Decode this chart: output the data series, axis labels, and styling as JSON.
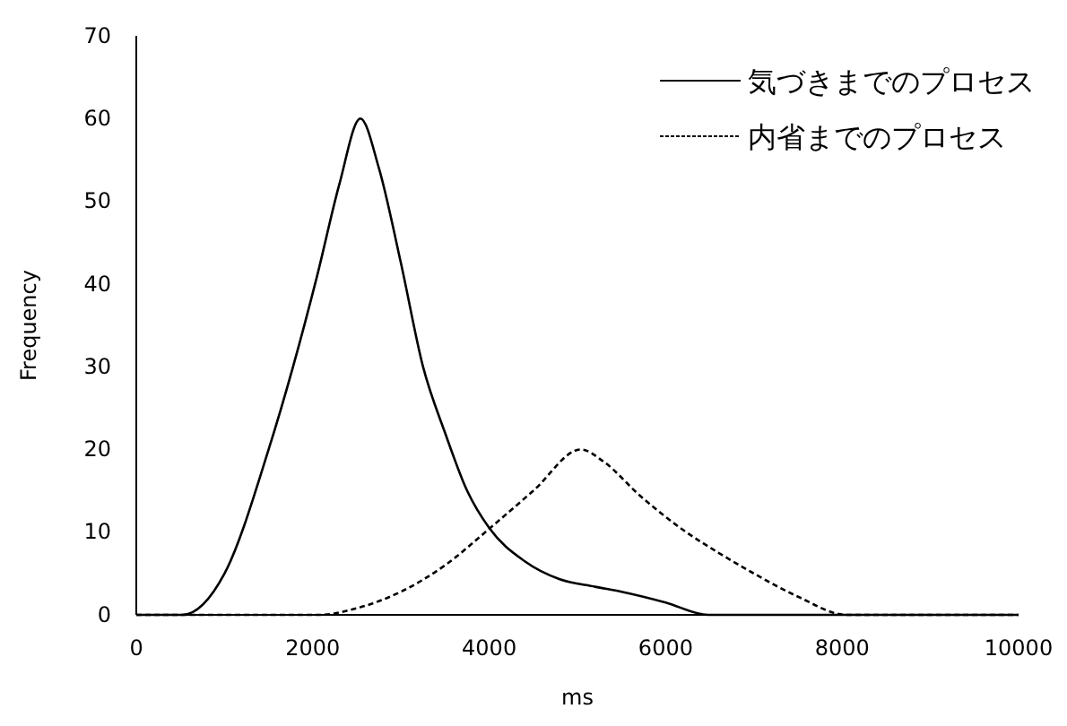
{
  "chart_data": {
    "type": "line",
    "xlabel": "ms",
    "ylabel": "Frequency",
    "xlim": [
      0,
      10000
    ],
    "xticks": [
      0,
      2000,
      4000,
      6000,
      8000,
      10000
    ],
    "ylim": [
      0,
      70
    ],
    "yticks": [
      0,
      10,
      20,
      30,
      40,
      50,
      60,
      70
    ],
    "grid": false,
    "legend": "top right",
    "marker": "none",
    "series": [
      {
        "name": "気づきまでのプロセス",
        "color": "#000000",
        "line_style": "solid",
        "x": [
          0,
          520,
          1000,
          1500,
          2050,
          2300,
          2540,
          2750,
          3000,
          3250,
          3500,
          3750,
          4000,
          4400,
          4800,
          5200,
          5500,
          6000,
          6480,
          10000
        ],
        "values": [
          0,
          0,
          5,
          20,
          41,
          52,
          60,
          54,
          42.5,
          30,
          22,
          15,
          10.5,
          6.5,
          4.3,
          3.4,
          2.8,
          1.5,
          0,
          0
        ]
      },
      {
        "name": "内省までのプロセス",
        "color": "#000000",
        "line_style": "dashed",
        "x": [
          0,
          2080,
          2500,
          3000,
          3500,
          4000,
          4500,
          5040,
          5300,
          5700,
          6180,
          6600,
          7000,
          7500,
          8050,
          10000
        ],
        "values": [
          0,
          0,
          0.8,
          2.8,
          6,
          10.4,
          15,
          20,
          18.5,
          14.5,
          10.4,
          7.5,
          5,
          2.2,
          0,
          0
        ]
      }
    ]
  }
}
